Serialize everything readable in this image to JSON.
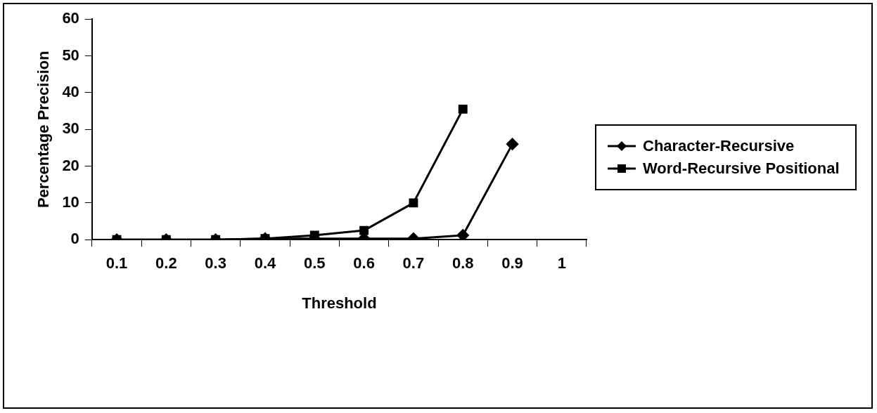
{
  "chart_data": {
    "type": "line",
    "xlabel": "Threshold",
    "ylabel": "Percentage Precision",
    "categories": [
      "0.1",
      "0.2",
      "0.3",
      "0.4",
      "0.5",
      "0.6",
      "0.7",
      "0.8",
      "0.9",
      "1"
    ],
    "series": [
      {
        "name": "Character-Recursive",
        "color": "#000000",
        "marker": "diamond",
        "values": [
          0,
          0,
          0,
          0.3,
          0.3,
          0.3,
          0.3,
          1.2,
          26,
          null
        ]
      },
      {
        "name": "Word-Recursive Positional",
        "color": "#000000",
        "marker": "square",
        "values": [
          0,
          0,
          0,
          0.3,
          1.2,
          2.5,
          10,
          35.5,
          null,
          null
        ]
      }
    ],
    "ylim": [
      0,
      60
    ],
    "yticks": [
      0,
      10,
      20,
      30,
      40,
      50,
      60
    ],
    "grid": false,
    "legend": "right",
    "line_style": "solid"
  }
}
